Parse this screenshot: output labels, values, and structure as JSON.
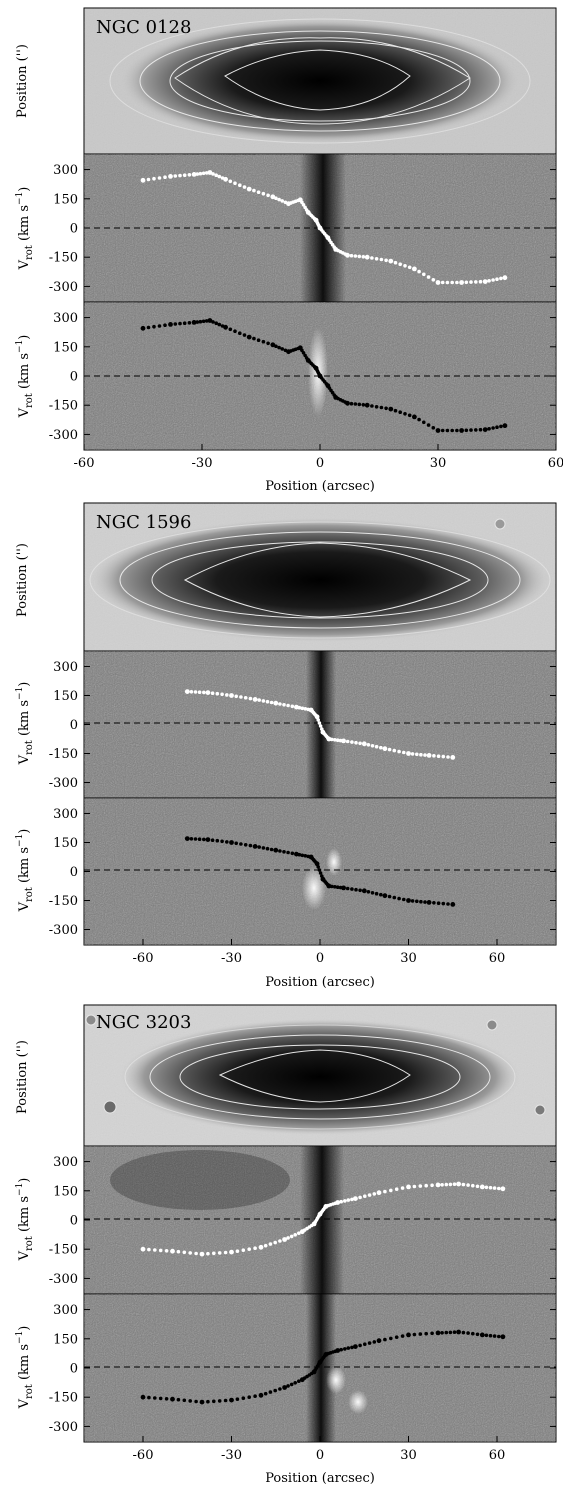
{
  "chart_data": [
    {
      "type": "scatter",
      "galaxy": "NGC 0128",
      "xlabel": "Position (arcsec)",
      "xlim": [
        -60,
        60
      ],
      "xticks": [
        "-60",
        "-30",
        "0",
        "30",
        "60"
      ],
      "image_panel": {
        "ylabel": "Position ('')"
      },
      "velocity_panels": [
        {
          "ylabel_main": "V",
          "ylabel_sub": "rot",
          "ylabel_rest": " (km s",
          "ylabel_sup": "−1",
          "ylabel_close": ")",
          "ylim": [
            -380,
            380
          ],
          "yticks": [
            "300",
            "150",
            "0",
            "-150",
            "-300"
          ],
          "background": "dark emission at centre",
          "marker_color": "#ffffff",
          "x": [
            -45,
            -38,
            -32,
            -28,
            -24,
            -18,
            -12,
            -8,
            -5,
            -3,
            -1,
            0,
            2,
            4,
            7,
            12,
            18,
            24,
            30,
            36,
            42,
            47
          ],
          "y": [
            245,
            265,
            275,
            285,
            250,
            200,
            160,
            125,
            145,
            80,
            40,
            0,
            -50,
            -110,
            -140,
            -150,
            -170,
            -210,
            -280,
            -280,
            -275,
            -255
          ]
        },
        {
          "ylabel_main": "V",
          "ylabel_sub": "rot",
          "ylabel_rest": " (km s",
          "ylabel_sup": "−1",
          "ylabel_close": ")",
          "ylim": [
            -380,
            380
          ],
          "yticks": [
            "300",
            "150",
            "0",
            "-150",
            "-300"
          ],
          "background": "bright emission at centre",
          "marker_color": "#000000",
          "x": [
            -45,
            -38,
            -32,
            -28,
            -24,
            -18,
            -12,
            -8,
            -5,
            -3,
            -1,
            0,
            2,
            4,
            7,
            12,
            18,
            24,
            30,
            36,
            42,
            47
          ],
          "y": [
            245,
            265,
            275,
            285,
            250,
            200,
            160,
            125,
            145,
            80,
            40,
            0,
            -50,
            -110,
            -140,
            -150,
            -170,
            -210,
            -280,
            -280,
            -275,
            -255
          ]
        }
      ]
    },
    {
      "type": "scatter",
      "galaxy": "NGC 1596",
      "xlabel": "Position (arcsec)",
      "xlim": [
        -80,
        80
      ],
      "xticks": [
        "-60",
        "-30",
        "0",
        "30",
        "60"
      ],
      "image_panel": {
        "ylabel": "Position ('')"
      },
      "velocity_panels": [
        {
          "ylabel_main": "V",
          "ylabel_sub": "rot",
          "ylabel_rest": " (km s",
          "ylabel_sup": "−1",
          "ylabel_close": ")",
          "ylim": [
            -380,
            380
          ],
          "yticks": [
            "300",
            "150",
            "0",
            "-150",
            "-300"
          ],
          "background": "dark emission at centre",
          "marker_color": "#ffffff",
          "x": [
            -45,
            -38,
            -30,
            -22,
            -15,
            -8,
            -3,
            -1,
            1,
            3,
            8,
            15,
            22,
            30,
            37,
            45
          ],
          "y": [
            170,
            165,
            150,
            130,
            110,
            90,
            75,
            40,
            -40,
            -75,
            -85,
            -100,
            -125,
            -150,
            -160,
            -170
          ]
        },
        {
          "ylabel_main": "V",
          "ylabel_sub": "rot",
          "ylabel_rest": " (km s",
          "ylabel_sup": "−1",
          "ylabel_close": ")",
          "ylim": [
            -380,
            380
          ],
          "yticks": [
            "300",
            "150",
            "0",
            "-150",
            "-300"
          ],
          "background": "bright emission at centre",
          "marker_color": "#000000",
          "x": [
            -45,
            -38,
            -30,
            -22,
            -15,
            -8,
            -3,
            -1,
            1,
            3,
            8,
            15,
            22,
            30,
            37,
            45
          ],
          "y": [
            170,
            165,
            150,
            130,
            110,
            90,
            75,
            40,
            -40,
            -75,
            -85,
            -100,
            -125,
            -150,
            -160,
            -170
          ]
        }
      ]
    },
    {
      "type": "scatter",
      "galaxy": "NGC 3203",
      "xlabel": "Position (arcsec)",
      "xlim": [
        -80,
        80
      ],
      "xticks": [
        "-60",
        "-30",
        "0",
        "30",
        "60"
      ],
      "image_panel": {
        "ylabel": "Position ('')"
      },
      "velocity_panels": [
        {
          "ylabel_main": "V",
          "ylabel_sub": "rot",
          "ylabel_rest": " (km s",
          "ylabel_sup": "−1",
          "ylabel_close": ")",
          "ylim": [
            -380,
            380
          ],
          "yticks": [
            "300",
            "150",
            "0",
            "-150",
            "-300"
          ],
          "background": "dark emission at centre",
          "marker_color": "#ffffff",
          "x": [
            -60,
            -50,
            -40,
            -30,
            -20,
            -12,
            -6,
            -2,
            0,
            2,
            6,
            12,
            20,
            30,
            40,
            47,
            55,
            62
          ],
          "y": [
            -150,
            -160,
            -175,
            -165,
            -140,
            -100,
            -60,
            -20,
            30,
            70,
            90,
            110,
            140,
            170,
            180,
            185,
            170,
            160
          ]
        },
        {
          "ylabel_main": "V",
          "ylabel_sub": "rot",
          "ylabel_rest": " (km s",
          "ylabel_sup": "−1",
          "ylabel_close": ")",
          "ylim": [
            -380,
            380
          ],
          "yticks": [
            "300",
            "150",
            "0",
            "-150",
            "-300"
          ],
          "background": "bright emission offset right of centre",
          "marker_color": "#000000",
          "x": [
            -60,
            -50,
            -40,
            -30,
            -20,
            -12,
            -6,
            -2,
            0,
            2,
            6,
            12,
            20,
            30,
            40,
            47,
            55,
            62
          ],
          "y": [
            -150,
            -160,
            -175,
            -165,
            -140,
            -100,
            -60,
            -20,
            30,
            70,
            90,
            110,
            140,
            170,
            180,
            185,
            170,
            160
          ]
        }
      ]
    }
  ]
}
